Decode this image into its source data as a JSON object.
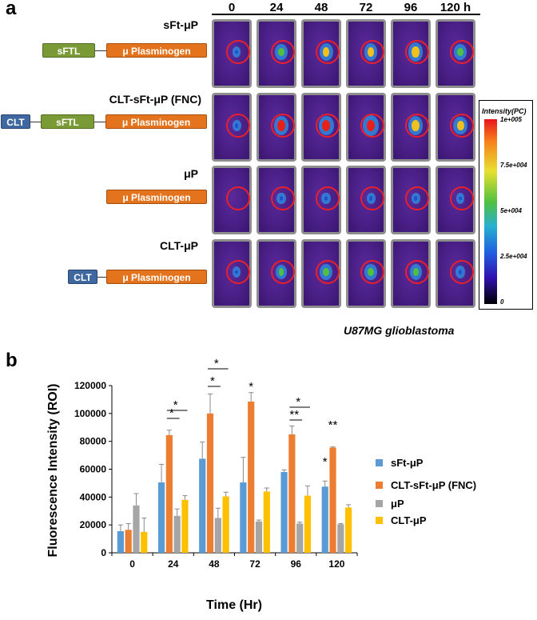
{
  "panel_a": {
    "label": "a",
    "time_points": [
      "0",
      "24",
      "48",
      "72",
      "96",
      "120 h"
    ],
    "constructs": [
      {
        "title": "sFt-μP",
        "parts": [
          {
            "text": "sFTL",
            "color": "green"
          },
          {
            "text": "μ Plasminogen",
            "color": "orange"
          }
        ]
      },
      {
        "title": "CLT-sFt-μP (FNC)",
        "parts": [
          {
            "text": "CLT",
            "color": "blue"
          },
          {
            "text": "sFTL",
            "color": "green"
          },
          {
            "text": "μ Plasminogen",
            "color": "orange"
          }
        ]
      },
      {
        "title": "μP",
        "parts": [
          {
            "text": "μ Plasminogen",
            "color": "orange"
          }
        ]
      },
      {
        "title": "CLT-μP",
        "parts": [
          {
            "text": "CLT",
            "color": "blue"
          },
          {
            "text": "μ Plasminogen",
            "color": "orange"
          }
        ]
      }
    ],
    "signal_levels": [
      [
        0.05,
        0.55,
        0.7,
        0.65,
        0.8,
        0.6
      ],
      [
        0.1,
        0.85,
        0.9,
        0.95,
        0.8,
        0.75
      ],
      [
        0.0,
        0.15,
        0.15,
        0.1,
        0.1,
        0.05
      ],
      [
        0.05,
        0.45,
        0.6,
        0.55,
        0.5,
        0.2
      ]
    ],
    "scale_title": "Intensity(PC)",
    "scale_ticks": [
      "1e+005",
      "7.5e+004",
      "5e+004",
      "2.5e+004",
      "0"
    ],
    "caption": "U87MG glioblastoma"
  },
  "panel_b": {
    "label": "b"
  },
  "chart_data": {
    "type": "bar",
    "xlabel": "Time (Hr)",
    "ylabel": "Fluorescence Intensity (ROI)",
    "ylim": [
      0,
      120000
    ],
    "yticks": [
      "0",
      "20000",
      "40000",
      "60000",
      "80000",
      "100000",
      "120000"
    ],
    "categories": [
      "0",
      "24",
      "48",
      "72",
      "96",
      "120"
    ],
    "series": [
      {
        "name": "sFt-μP",
        "color": "#5b9bd5",
        "values": [
          15500,
          50500,
          67500,
          50500,
          58000,
          47500
        ],
        "errors": [
          4500,
          13000,
          12000,
          18000,
          1500,
          4000
        ]
      },
      {
        "name": "CLT-sFt-μP (FNC)",
        "color": "#ed7d31",
        "values": [
          16500,
          84500,
          100000,
          108500,
          85000,
          75500
        ],
        "errors": [
          4500,
          3500,
          14000,
          6500,
          6000,
          500
        ]
      },
      {
        "name": "μP",
        "color": "#a5a5a5",
        "values": [
          34000,
          26500,
          25000,
          22500,
          21000,
          20500
        ],
        "errors": [
          8500,
          5000,
          7000,
          1000,
          1000,
          500
        ]
      },
      {
        "name": "CLT-μP",
        "color": "#ffc000",
        "values": [
          15000,
          38000,
          40500,
          44000,
          41000,
          32500
        ],
        "errors": [
          10000,
          3000,
          3000,
          2500,
          7000,
          2000
        ]
      }
    ],
    "significance": [
      {
        "category": "24",
        "marks": [
          "*",
          "*"
        ]
      },
      {
        "category": "48",
        "marks": [
          "*",
          "*"
        ]
      },
      {
        "category": "72",
        "marks": [
          "*"
        ]
      },
      {
        "category": "96",
        "marks": [
          "**",
          "*"
        ]
      },
      {
        "category": "120",
        "marks": [
          "*",
          "**"
        ]
      }
    ],
    "legend_position": "right"
  }
}
